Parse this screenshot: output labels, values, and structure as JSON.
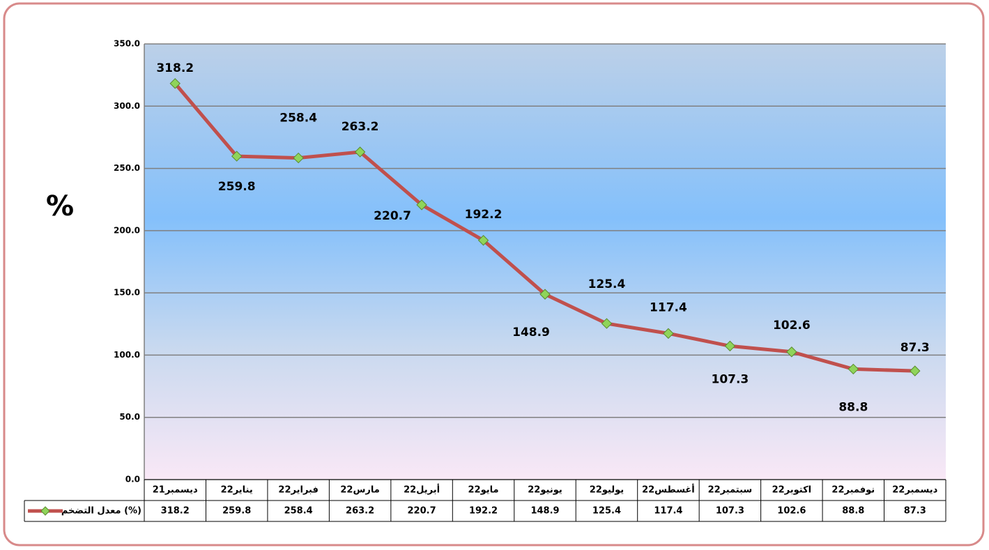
{
  "chart_data": {
    "type": "line",
    "y_label": "%",
    "categories": [
      "ديسمبر21",
      "يناير22",
      "فبراير22",
      "مارس22",
      "أبريل22",
      "مايو22",
      "يونيو22",
      "يوليو22",
      "أغسطس22",
      "سبتمبر22",
      "اكتوبر22",
      "نوفمبر22",
      "ديسمبر22"
    ],
    "series": [
      {
        "name": "معدل التضخم (%)",
        "color": "#c0504d",
        "marker_color": "#8fd45a",
        "values": [
          318.2,
          259.8,
          258.4,
          263.2,
          220.7,
          192.2,
          148.9,
          125.4,
          117.4,
          107.3,
          102.6,
          88.8,
          87.3
        ]
      }
    ],
    "ylim": [
      0,
      350
    ],
    "yticks": [
      {
        "value": 0,
        "label": "0.0"
      },
      {
        "value": 50,
        "label": "50.0"
      },
      {
        "value": 100,
        "label": "100.0"
      },
      {
        "value": 150,
        "label": "150.0"
      },
      {
        "value": 200,
        "label": "200.0"
      },
      {
        "value": 250,
        "label": "250.0"
      },
      {
        "value": 300,
        "label": "300.0"
      },
      {
        "value": 350,
        "label": "350.0"
      }
    ],
    "grid": true,
    "data_table": true
  }
}
